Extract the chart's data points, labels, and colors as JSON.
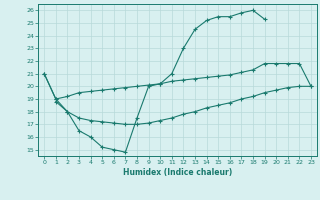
{
  "line1_x": [
    0,
    1,
    2,
    3,
    4,
    5,
    6,
    7,
    8,
    9,
    10,
    11,
    12,
    13,
    14,
    15,
    16,
    17,
    18,
    19
  ],
  "line1_y": [
    21.0,
    19.0,
    18.0,
    16.5,
    16.0,
    15.2,
    15.0,
    14.8,
    17.5,
    20.0,
    20.2,
    21.0,
    23.0,
    24.5,
    25.2,
    25.5,
    25.5,
    25.8,
    26.0,
    25.3
  ],
  "line2_x": [
    0,
    1,
    2,
    3,
    4,
    5,
    6,
    7,
    8,
    9,
    10,
    11,
    12,
    13,
    14,
    15,
    16,
    17,
    18,
    19,
    20,
    21,
    22,
    23
  ],
  "line2_y": [
    21.0,
    19.0,
    19.2,
    19.5,
    19.6,
    19.7,
    19.8,
    19.9,
    20.0,
    20.1,
    20.2,
    20.4,
    20.5,
    20.6,
    20.7,
    20.8,
    20.9,
    21.1,
    21.3,
    21.8,
    21.8,
    21.8,
    21.8,
    20.0
  ],
  "line3_x": [
    1,
    2,
    3,
    4,
    5,
    6,
    7,
    8,
    9,
    10,
    11,
    12,
    13,
    14,
    15,
    16,
    17,
    18,
    19,
    20,
    21,
    22,
    23
  ],
  "line3_y": [
    18.8,
    18.0,
    17.5,
    17.3,
    17.2,
    17.1,
    17.0,
    17.0,
    17.1,
    17.3,
    17.5,
    17.8,
    18.0,
    18.3,
    18.5,
    18.7,
    19.0,
    19.2,
    19.5,
    19.7,
    19.9,
    20.0,
    20.0
  ],
  "color": "#1a7a6e",
  "bg_color": "#d8f0f0",
  "grid_color": "#b8dada",
  "xlim": [
    -0.5,
    23.5
  ],
  "ylim": [
    14.5,
    26.5
  ],
  "yticks": [
    15,
    16,
    17,
    18,
    19,
    20,
    21,
    22,
    23,
    24,
    25,
    26
  ],
  "xticks": [
    0,
    1,
    2,
    3,
    4,
    5,
    6,
    7,
    8,
    9,
    10,
    11,
    12,
    13,
    14,
    15,
    16,
    17,
    18,
    19,
    20,
    21,
    22,
    23
  ],
  "xlabel": "Humidex (Indice chaleur)",
  "marker": "+",
  "marker_size": 3.5,
  "linewidth": 0.8
}
